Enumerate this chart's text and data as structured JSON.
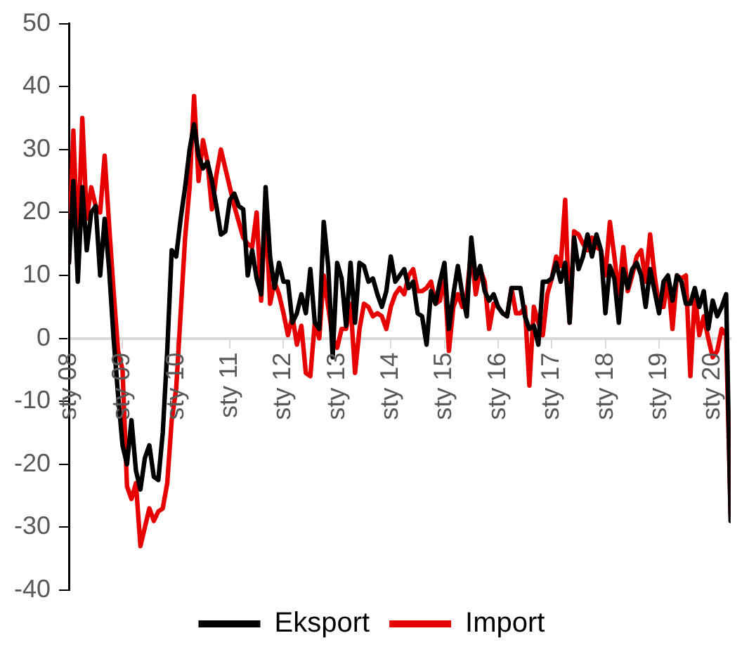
{
  "chart_data": {
    "type": "line",
    "x": [
      "2008-01",
      "2008-02",
      "2008-03",
      "2008-04",
      "2008-05",
      "2008-06",
      "2008-07",
      "2008-08",
      "2008-09",
      "2008-10",
      "2008-11",
      "2008-12",
      "2009-01",
      "2009-02",
      "2009-03",
      "2009-04",
      "2009-05",
      "2009-06",
      "2009-07",
      "2009-08",
      "2009-09",
      "2009-10",
      "2009-11",
      "2009-12",
      "2010-01",
      "2010-02",
      "2010-03",
      "2010-04",
      "2010-05",
      "2010-06",
      "2010-07",
      "2010-08",
      "2010-09",
      "2010-10",
      "2010-11",
      "2010-12",
      "2011-01",
      "2011-02",
      "2011-03",
      "2011-04",
      "2011-05",
      "2011-06",
      "2011-07",
      "2011-08",
      "2011-09",
      "2011-10",
      "2011-11",
      "2011-12",
      "2012-01",
      "2012-02",
      "2012-03",
      "2012-04",
      "2012-05",
      "2012-06",
      "2012-07",
      "2012-08",
      "2012-09",
      "2012-10",
      "2012-11",
      "2012-12",
      "2013-01",
      "2013-02",
      "2013-03",
      "2013-04",
      "2013-05",
      "2013-06",
      "2013-07",
      "2013-08",
      "2013-09",
      "2013-10",
      "2013-11",
      "2013-12",
      "2014-01",
      "2014-02",
      "2014-03",
      "2014-04",
      "2014-05",
      "2014-06",
      "2014-07",
      "2014-08",
      "2014-09",
      "2014-10",
      "2014-11",
      "2014-12",
      "2015-01",
      "2015-02",
      "2015-03",
      "2015-04",
      "2015-05",
      "2015-06",
      "2015-07",
      "2015-08",
      "2015-09",
      "2015-10",
      "2015-11",
      "2015-12",
      "2016-01",
      "2016-02",
      "2016-03",
      "2016-04",
      "2016-05",
      "2016-06",
      "2016-07",
      "2016-08",
      "2016-09",
      "2016-10",
      "2016-11",
      "2016-12",
      "2017-01",
      "2017-02",
      "2017-03",
      "2017-04",
      "2017-05",
      "2017-06",
      "2017-07",
      "2017-08",
      "2017-09",
      "2017-10",
      "2017-11",
      "2017-12",
      "2018-01",
      "2018-02",
      "2018-03",
      "2018-04",
      "2018-05",
      "2018-06",
      "2018-07",
      "2018-08",
      "2018-09",
      "2018-10",
      "2018-11",
      "2018-12",
      "2019-01",
      "2019-02",
      "2019-03",
      "2019-04",
      "2019-05",
      "2019-06",
      "2019-07",
      "2019-08",
      "2019-09",
      "2019-10",
      "2019-11",
      "2019-12",
      "2020-01",
      "2020-02",
      "2020-03",
      "2020-04",
      "2020-05"
    ],
    "series": [
      {
        "name": "Eksport",
        "color": "#000000",
        "values": [
          12,
          25,
          9,
          24,
          14,
          20,
          21,
          10,
          19,
          11,
          0,
          -9,
          -17,
          -20,
          -13,
          -21,
          -24,
          -19,
          -17,
          -22,
          -22.5,
          -15,
          -2,
          14,
          13,
          19,
          24,
          30,
          34,
          29,
          27,
          28,
          25,
          21,
          16.5,
          17,
          22,
          23,
          21,
          20.5,
          10,
          14,
          9.5,
          7,
          24,
          13,
          8,
          12,
          9,
          9,
          2.5,
          4,
          7,
          4,
          11,
          2.5,
          1.5,
          18.5,
          11.5,
          -3,
          12,
          9.5,
          2,
          12,
          2.5,
          12,
          11.5,
          9,
          9.5,
          7,
          5,
          7.5,
          13,
          9,
          10,
          11,
          8,
          9,
          4,
          3.5,
          -1,
          7.5,
          5.5,
          9,
          12,
          1.5,
          7,
          11.5,
          7,
          3.5,
          16,
          9.5,
          11.5,
          7.5,
          6,
          7,
          5,
          4,
          3.5,
          8,
          8,
          8,
          3.5,
          1.5,
          2,
          -1,
          9,
          9,
          9.5,
          12,
          9,
          12,
          2.5,
          16,
          11,
          13,
          16.5,
          13,
          16.5,
          14,
          4,
          11.5,
          9.5,
          2.5,
          11,
          8,
          11,
          12,
          10,
          5,
          11,
          7.5,
          4,
          9,
          10,
          6,
          10,
          9,
          5.5,
          5.5,
          8,
          5,
          7.5,
          1.5,
          6,
          3.5,
          5,
          7,
          -29
        ]
      },
      {
        "name": "Import",
        "color": "#e60000",
        "values": [
          12,
          33,
          14,
          35,
          19,
          24,
          21,
          20,
          29,
          18,
          7.5,
          -2,
          -5,
          -23.5,
          -25.5,
          -23,
          -33,
          -30,
          -27,
          -29,
          -27.5,
          -27,
          -23,
          -13,
          -8,
          4,
          16,
          24,
          38.5,
          25,
          31.5,
          28,
          20.5,
          26,
          30,
          27,
          24,
          21,
          18.5,
          16,
          15,
          14.5,
          20,
          6,
          21,
          5.5,
          9,
          7,
          4,
          0.5,
          3.5,
          -1,
          2,
          -5.5,
          -6,
          2.5,
          0,
          10,
          5,
          0,
          -1.5,
          1.5,
          1.5,
          5.5,
          -5.5,
          1.5,
          5.5,
          5,
          3.5,
          4,
          3.5,
          1.5,
          5,
          7,
          8,
          7,
          10,
          11,
          7.5,
          7.5,
          8,
          9,
          5.5,
          6,
          10,
          -2,
          5,
          7,
          5,
          7,
          14,
          7,
          11,
          9,
          1.5,
          5.5,
          5,
          4,
          3.5,
          8,
          4,
          4,
          5,
          -7.5,
          5,
          2.5,
          0.5,
          7,
          9.5,
          13,
          11.5,
          22,
          2.5,
          17,
          16.5,
          15,
          14,
          16,
          14.5,
          14,
          10,
          18.5,
          13,
          7,
          14.5,
          7.5,
          10,
          13,
          14,
          9,
          16.5,
          10,
          5,
          5,
          9.5,
          1.5,
          10,
          9.5,
          10,
          -6,
          7,
          0.5,
          3.5,
          0,
          -3,
          -2,
          1.5,
          0.5,
          -28
        ]
      }
    ],
    "xlim": [
      "2008-01",
      "2020-05"
    ],
    "xticks": [
      {
        "value": "2008-01",
        "label": "sty 08"
      },
      {
        "value": "2009-01",
        "label": "sty 09"
      },
      {
        "value": "2010-01",
        "label": "sty 10"
      },
      {
        "value": "2011-01",
        "label": "sty 11"
      },
      {
        "value": "2012-01",
        "label": "sty 12"
      },
      {
        "value": "2013-01",
        "label": "sty 13"
      },
      {
        "value": "2014-01",
        "label": "sty 14"
      },
      {
        "value": "2015-01",
        "label": "sty 15"
      },
      {
        "value": "2016-01",
        "label": "sty 16"
      },
      {
        "value": "2017-01",
        "label": "sty 17"
      },
      {
        "value": "2018-01",
        "label": "sty 18"
      },
      {
        "value": "2019-01",
        "label": "sty 19"
      },
      {
        "value": "2020-01",
        "label": "sty 20"
      }
    ],
    "ylim": [
      -40,
      50
    ],
    "yticks": [
      -40,
      -30,
      -20,
      -10,
      0,
      10,
      20,
      30,
      40,
      50
    ],
    "legend": "bottom",
    "marker": "none",
    "line_style": "solid"
  }
}
